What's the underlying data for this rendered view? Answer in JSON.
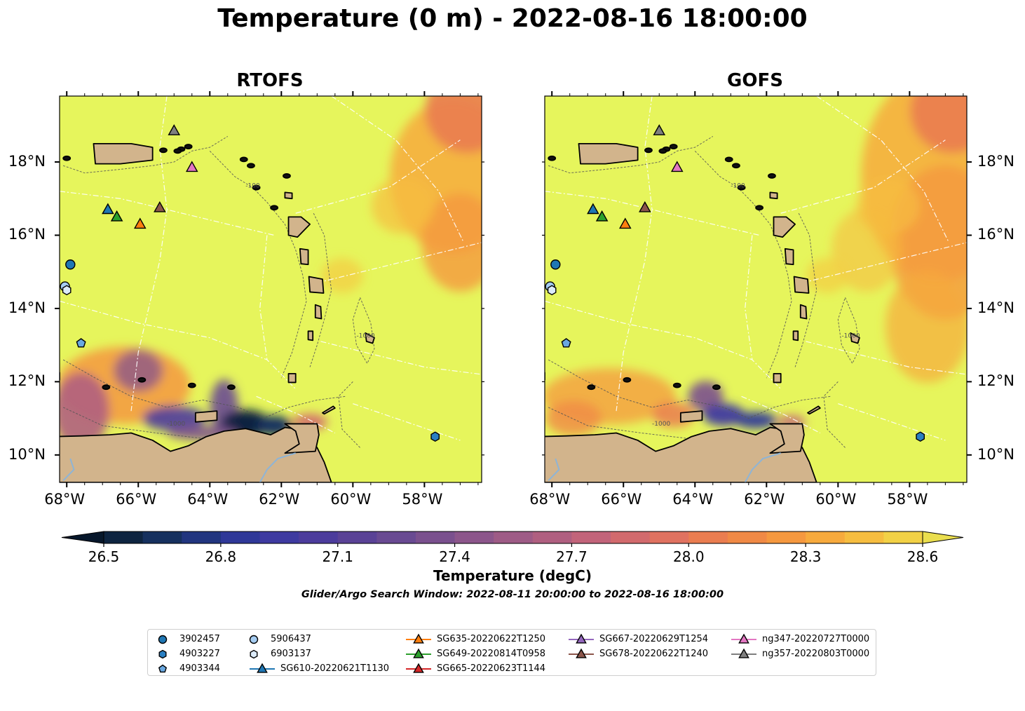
{
  "title": "Temperature (0 m) - 2022-08-16 18:00:00",
  "panels": [
    {
      "id": "rtofs",
      "title": "RTOFS"
    },
    {
      "id": "gofs",
      "title": "GOFS"
    }
  ],
  "map": {
    "lon_range": [
      -68.2,
      -56.4
    ],
    "lat_range": [
      9.25,
      19.8
    ],
    "lon_ticks": [
      {
        "value": -68,
        "label": "68°W"
      },
      {
        "value": -66,
        "label": "66°W"
      },
      {
        "value": -64,
        "label": "64°W"
      },
      {
        "value": -62,
        "label": "62°W"
      },
      {
        "value": -60,
        "label": "60°W"
      },
      {
        "value": -58,
        "label": "58°W"
      }
    ],
    "lat_ticks": [
      {
        "value": 10,
        "label": "10°N"
      },
      {
        "value": 12,
        "label": "12°N"
      },
      {
        "value": 14,
        "label": "14°N"
      },
      {
        "value": 16,
        "label": "16°N"
      },
      {
        "value": 18,
        "label": "18°N"
      }
    ],
    "contour_labels": [
      "-100",
      "-1000"
    ],
    "colors": {
      "ocean_base": "#e6f55c",
      "land": "#d2b48c",
      "contour": "#555555",
      "eez": "#ffffff",
      "river": "#8eb4d6"
    }
  },
  "colorbar": {
    "label": "Temperature (degC)",
    "min": 26.5,
    "max": 28.6,
    "step": 0.1,
    "ticks": [
      "26.5",
      "26.8",
      "27.1",
      "27.4",
      "27.7",
      "28.0",
      "28.3",
      "28.6"
    ],
    "colors": [
      "#07172b",
      "#0e2440",
      "#16305e",
      "#21357f",
      "#2f3898",
      "#3e3aa0",
      "#4c3c9c",
      "#5a4296",
      "#694a92",
      "#7a508e",
      "#8c568b",
      "#9e5b86",
      "#b05f80",
      "#c2647a",
      "#d26a6d",
      "#e07260",
      "#ea7d50",
      "#f08945",
      "#f5983f",
      "#f7aa3d",
      "#f6bd40",
      "#f2d146",
      "#eade4e"
    ]
  },
  "search_window": "Glider/Argo Search Window: 2022-08-11 20:00:00 to 2022-08-16 18:00:00",
  "platforms": [
    {
      "name": "3902457",
      "kind": "argo",
      "marker": "circle",
      "color": "#1f77b4",
      "lon": -67.9,
      "lat": 15.2
    },
    {
      "name": "4903227",
      "kind": "argo",
      "marker": "hexagon",
      "color": "#2a7fc2",
      "lon": -57.7,
      "lat": 10.5
    },
    {
      "name": "4903344",
      "kind": "argo",
      "marker": "pentagon",
      "color": "#6aa8e0",
      "lon": -67.6,
      "lat": 13.05
    },
    {
      "name": "5906437",
      "kind": "argo",
      "marker": "circle",
      "color": "#a6cdf2",
      "lon": -68.05,
      "lat": 14.6
    },
    {
      "name": "6903137",
      "kind": "argo",
      "marker": "hexagon",
      "color": "#dcebfa",
      "lon": -68.0,
      "lat": 14.5
    },
    {
      "name": "SG610-20220621T1130",
      "kind": "glider",
      "marker": "triangle",
      "color": "#1f77b4",
      "lon": -66.85,
      "lat": 16.7
    },
    {
      "name": "SG635-20220622T1250",
      "kind": "glider",
      "marker": "triangle",
      "color": "#ff7f0e",
      "lon": -65.95,
      "lat": 16.3
    },
    {
      "name": "SG649-20220814T0958",
      "kind": "glider",
      "marker": "triangle",
      "color": "#2ca02c",
      "lon": -66.6,
      "lat": 16.5
    },
    {
      "name": "SG665-20220623T1144",
      "kind": "glider",
      "marker": "triangle",
      "color": "#d62728",
      "lon": null,
      "lat": null
    },
    {
      "name": "SG667-20220629T1254",
      "kind": "glider",
      "marker": "triangle",
      "color": "#9467bd",
      "lon": null,
      "lat": null
    },
    {
      "name": "SG678-20220622T1240",
      "kind": "glider",
      "marker": "triangle",
      "color": "#8c564b",
      "lon": -65.4,
      "lat": 16.75
    },
    {
      "name": "ng347-20220727T0000",
      "kind": "glider",
      "marker": "triangle",
      "color": "#e377c2",
      "lon": -64.5,
      "lat": 17.85
    },
    {
      "name": "ng357-20220803T0000",
      "kind": "glider",
      "marker": "triangle",
      "color": "#7f7f7f",
      "lon": -65.0,
      "lat": 18.85
    }
  ]
}
